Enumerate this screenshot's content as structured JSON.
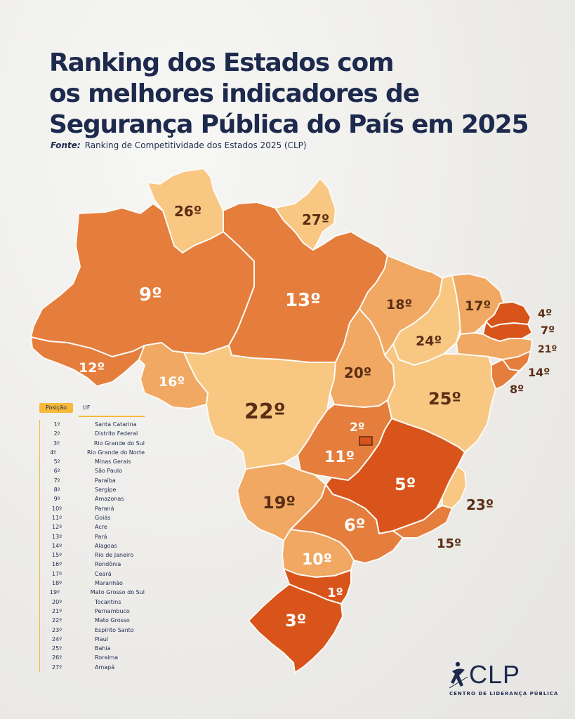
{
  "title": {
    "line1": "Ranking dos Estados com",
    "line2": "os melhores indicadores de",
    "line3": "Segurança Pública do País em 2025"
  },
  "source": {
    "label": "Fonte:",
    "text": "Ranking de Competitividade dos Estados 2025 (CLP)"
  },
  "colors": {
    "tier1": "#d8541a",
    "tier2": "#e57d3c",
    "tier3": "#f0a862",
    "tier4": "#f8c782",
    "label_dark": "#5a2d14",
    "label_light": "#ffffff"
  },
  "map": {
    "states": [
      {
        "id": "RR",
        "rank": "26º"
      },
      {
        "id": "AP",
        "rank": "27º"
      },
      {
        "id": "AM",
        "rank": "9º"
      },
      {
        "id": "PA",
        "rank": "13º"
      },
      {
        "id": "MA",
        "rank": "18º"
      },
      {
        "id": "CE",
        "rank": "17º"
      },
      {
        "id": "RN",
        "rank": "4º"
      },
      {
        "id": "PB",
        "rank": "7º"
      },
      {
        "id": "PE",
        "rank": "21º"
      },
      {
        "id": "AL",
        "rank": "14º"
      },
      {
        "id": "SE",
        "rank": "8º"
      },
      {
        "id": "PI",
        "rank": "24º"
      },
      {
        "id": "AC",
        "rank": "12º"
      },
      {
        "id": "RO",
        "rank": "16º"
      },
      {
        "id": "TO",
        "rank": "20º"
      },
      {
        "id": "BA",
        "rank": "25º"
      },
      {
        "id": "MT",
        "rank": "22º"
      },
      {
        "id": "DF",
        "rank": "2º"
      },
      {
        "id": "GO",
        "rank": "11º"
      },
      {
        "id": "MG",
        "rank": "5º"
      },
      {
        "id": "ES",
        "rank": "23º"
      },
      {
        "id": "MS",
        "rank": "19º"
      },
      {
        "id": "SP",
        "rank": "6º"
      },
      {
        "id": "RJ",
        "rank": "15º"
      },
      {
        "id": "PR",
        "rank": "10º"
      },
      {
        "id": "SC",
        "rank": "1º"
      },
      {
        "id": "RS",
        "rank": "3º"
      }
    ]
  },
  "legend": {
    "col_position": "Posição",
    "col_uf": "UF",
    "rows": [
      {
        "pos": "1º",
        "state": "Santa Catarina"
      },
      {
        "pos": "2º",
        "state": "Distrito Federal"
      },
      {
        "pos": "3º",
        "state": "Rio Grande do Sul"
      },
      {
        "pos": "4º",
        "state": "Rio Grande do Norte"
      },
      {
        "pos": "5º",
        "state": "Minas Gerais"
      },
      {
        "pos": "6º",
        "state": "São Paulo"
      },
      {
        "pos": "7º",
        "state": "Paraíba"
      },
      {
        "pos": "8º",
        "state": "Sergipe"
      },
      {
        "pos": "9º",
        "state": "Amazonas"
      },
      {
        "pos": "10º",
        "state": "Paraná"
      },
      {
        "pos": "11º",
        "state": "Goiás"
      },
      {
        "pos": "12º",
        "state": "Acre"
      },
      {
        "pos": "13º",
        "state": "Pará"
      },
      {
        "pos": "14º",
        "state": "Alagoas"
      },
      {
        "pos": "15º",
        "state": "Rio de Janeiro"
      },
      {
        "pos": "16º",
        "state": "Rondônia"
      },
      {
        "pos": "17º",
        "state": "Ceará"
      },
      {
        "pos": "18º",
        "state": "Maranhão"
      },
      {
        "pos": "19º",
        "state": "Mato Grosso do Sul"
      },
      {
        "pos": "20º",
        "state": "Tocantins"
      },
      {
        "pos": "21º",
        "state": "Pernambuco"
      },
      {
        "pos": "22º",
        "state": "Mato Grosso"
      },
      {
        "pos": "23º",
        "state": "Espírito Santo"
      },
      {
        "pos": "24º",
        "state": "Piauí"
      },
      {
        "pos": "25º",
        "state": "Bahia"
      },
      {
        "pos": "26º",
        "state": "Roraima"
      },
      {
        "pos": "27º",
        "state": "Amapá"
      }
    ]
  },
  "logo": {
    "mark": "CLP",
    "tagline": "CENTRO DE LIDERANÇA PÚBLICA"
  }
}
